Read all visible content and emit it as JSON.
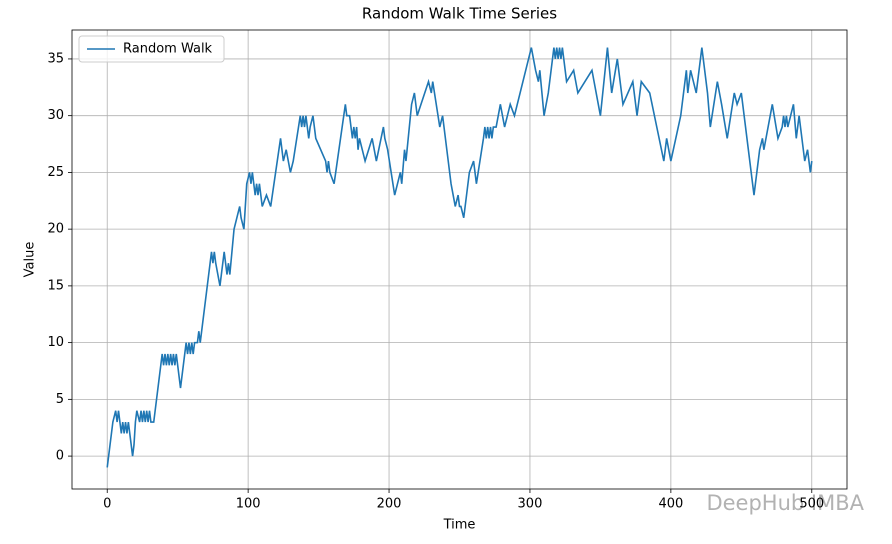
{
  "chart_data": {
    "type": "line",
    "title": "Random Walk Time Series",
    "xlabel": "Time",
    "ylabel": "Value",
    "x": [
      0,
      4,
      6,
      7,
      8,
      9,
      10,
      11,
      12,
      13,
      14,
      15,
      18,
      19,
      20,
      21,
      23,
      24,
      25,
      26,
      27,
      28,
      29,
      30,
      31,
      33,
      38,
      39,
      40,
      41,
      42,
      43,
      44,
      45,
      46,
      47,
      48,
      49,
      50,
      52,
      55,
      56,
      57,
      58,
      59,
      60,
      61,
      62,
      64,
      65,
      66,
      73,
      74,
      75,
      76,
      77,
      80,
      83,
      84,
      85,
      86,
      87,
      90,
      94,
      95,
      97,
      99,
      101,
      102,
      103,
      104,
      105,
      106,
      107,
      108,
      110,
      113,
      116,
      123,
      125,
      127,
      130,
      132,
      137,
      138,
      139,
      140,
      141,
      142,
      143,
      144,
      146,
      148,
      155,
      156,
      157,
      158,
      161,
      169,
      170,
      172,
      174,
      175,
      176,
      177,
      178,
      179,
      181,
      183,
      188,
      191,
      196,
      197,
      199,
      204,
      208,
      209,
      211,
      212,
      216,
      218,
      220,
      228,
      230,
      231,
      236,
      238,
      242,
      244,
      247,
      249,
      250,
      251,
      253,
      257,
      260,
      262,
      267,
      268,
      269,
      270,
      271,
      272,
      273,
      274,
      276,
      279,
      282,
      286,
      289,
      301,
      304,
      306,
      307,
      310,
      313,
      317,
      318,
      319,
      320,
      321,
      322,
      323,
      326,
      331,
      334,
      344,
      350,
      355,
      358,
      362,
      366,
      373,
      376,
      379,
      385,
      390,
      395,
      397,
      400,
      407,
      411,
      412,
      414,
      418,
      422,
      426,
      428,
      433,
      436,
      440,
      445,
      447,
      450,
      455,
      459,
      463,
      465,
      466,
      472,
      476,
      479,
      480,
      481,
      482,
      483,
      485,
      487,
      489,
      491,
      495,
      497,
      499,
      500
    ],
    "series": [
      {
        "name": "Random Walk",
        "color": "#1f77b4",
        "values": [
          -1,
          3,
          4,
          3,
          4,
          3,
          2,
          3,
          2,
          3,
          2,
          3,
          0,
          1,
          3,
          4,
          3,
          4,
          3,
          4,
          3,
          4,
          3,
          4,
          3,
          3,
          8,
          9,
          8,
          9,
          8,
          9,
          8,
          9,
          8,
          9,
          8,
          9,
          8,
          6,
          9,
          10,
          9,
          10,
          9,
          10,
          9,
          10,
          10,
          11,
          10,
          17,
          18,
          17,
          18,
          17,
          15,
          18,
          17,
          16,
          17,
          16,
          20,
          22,
          21,
          20,
          24,
          25,
          24,
          25,
          24,
          23,
          24,
          23,
          24,
          22,
          23,
          22,
          28,
          26,
          27,
          25,
          26,
          30,
          29,
          30,
          29,
          30,
          29,
          28,
          29,
          30,
          28,
          26,
          25,
          26,
          25,
          24,
          31,
          30,
          30,
          28,
          29,
          28,
          29,
          27,
          28,
          27,
          26,
          28,
          26,
          29,
          28,
          27,
          23,
          25,
          24,
          27,
          26,
          31,
          32,
          30,
          33,
          32,
          33,
          29,
          30,
          26,
          24,
          22,
          23,
          22,
          22,
          21,
          25,
          26,
          24,
          28,
          29,
          28,
          29,
          28,
          29,
          28,
          29,
          29,
          31,
          29,
          31,
          30,
          36,
          34,
          33,
          34,
          30,
          32,
          36,
          35,
          36,
          35,
          36,
          35,
          36,
          33,
          34,
          32,
          34,
          30,
          36,
          32,
          35,
          31,
          33,
          30,
          33,
          32,
          29,
          26,
          28,
          26,
          30,
          34,
          32,
          34,
          32,
          36,
          32,
          29,
          33,
          31,
          28,
          32,
          31,
          32,
          27,
          23,
          27,
          28,
          27,
          31,
          28,
          29,
          30,
          29,
          30,
          29,
          30,
          31,
          28,
          30,
          26,
          27,
          25,
          26
        ]
      }
    ],
    "xlim": [
      -25,
      525
    ],
    "ylim": [
      -2.9,
      37.55
    ],
    "xticks": [
      0,
      100,
      200,
      300,
      400,
      500
    ],
    "yticks": [
      0,
      5,
      10,
      15,
      20,
      25,
      30,
      35
    ],
    "grid": true,
    "legend": "upper-left"
  },
  "watermark": "DeepHub IMBA"
}
